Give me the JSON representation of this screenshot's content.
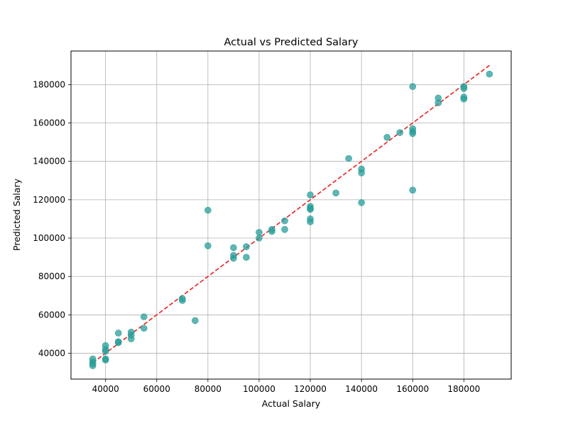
{
  "chart_data": {
    "type": "scatter",
    "title": "Actual vs Predicted Salary",
    "xlabel": "Actual Salary",
    "ylabel": "Predicted Salary",
    "xlim": [
      26500,
      198500
    ],
    "ylim": [
      26500,
      197500
    ],
    "xticks": [
      40000,
      60000,
      80000,
      100000,
      120000,
      140000,
      160000,
      180000
    ],
    "yticks": [
      40000,
      60000,
      80000,
      100000,
      120000,
      140000,
      160000,
      180000
    ],
    "grid": true,
    "point_color": "#2a9d99",
    "line_color": "#e8211e",
    "reference_line": {
      "x": [
        35000,
        190000
      ],
      "y": [
        35000,
        190000
      ],
      "style": "dashed"
    },
    "points": [
      [
        35000,
        37000
      ],
      [
        35000,
        35500
      ],
      [
        35000,
        34500
      ],
      [
        35000,
        33500
      ],
      [
        40000,
        44000
      ],
      [
        40000,
        42000
      ],
      [
        40000,
        41000
      ],
      [
        40000,
        37000
      ],
      [
        40000,
        36500
      ],
      [
        45000,
        50500
      ],
      [
        45000,
        46000
      ],
      [
        45000,
        45500
      ],
      [
        50000,
        51000
      ],
      [
        50000,
        49500
      ],
      [
        50000,
        47500
      ],
      [
        55000,
        59000
      ],
      [
        55000,
        53000
      ],
      [
        70000,
        68500
      ],
      [
        70000,
        67500
      ],
      [
        75000,
        57000
      ],
      [
        80000,
        114500
      ],
      [
        80000,
        96000
      ],
      [
        90000,
        95000
      ],
      [
        90000,
        91000
      ],
      [
        90000,
        89500
      ],
      [
        95000,
        95500
      ],
      [
        95000,
        90000
      ],
      [
        100000,
        103000
      ],
      [
        100000,
        100000
      ],
      [
        105000,
        104500
      ],
      [
        105000,
        103500
      ],
      [
        110000,
        109000
      ],
      [
        110000,
        104500
      ],
      [
        120000,
        122500
      ],
      [
        120000,
        116500
      ],
      [
        120000,
        115500
      ],
      [
        120000,
        115000
      ],
      [
        120000,
        110000
      ],
      [
        120000,
        108500
      ],
      [
        130000,
        123500
      ],
      [
        135000,
        141500
      ],
      [
        140000,
        136000
      ],
      [
        140000,
        134000
      ],
      [
        140000,
        118500
      ],
      [
        150000,
        152500
      ],
      [
        155000,
        155000
      ],
      [
        160000,
        179000
      ],
      [
        160000,
        157000
      ],
      [
        160000,
        155500
      ],
      [
        160000,
        154500
      ],
      [
        160000,
        125000
      ],
      [
        170000,
        173000
      ],
      [
        170000,
        170500
      ],
      [
        180000,
        179000
      ],
      [
        180000,
        178000
      ],
      [
        180000,
        173500
      ],
      [
        180000,
        172500
      ],
      [
        190000,
        185500
      ]
    ]
  }
}
